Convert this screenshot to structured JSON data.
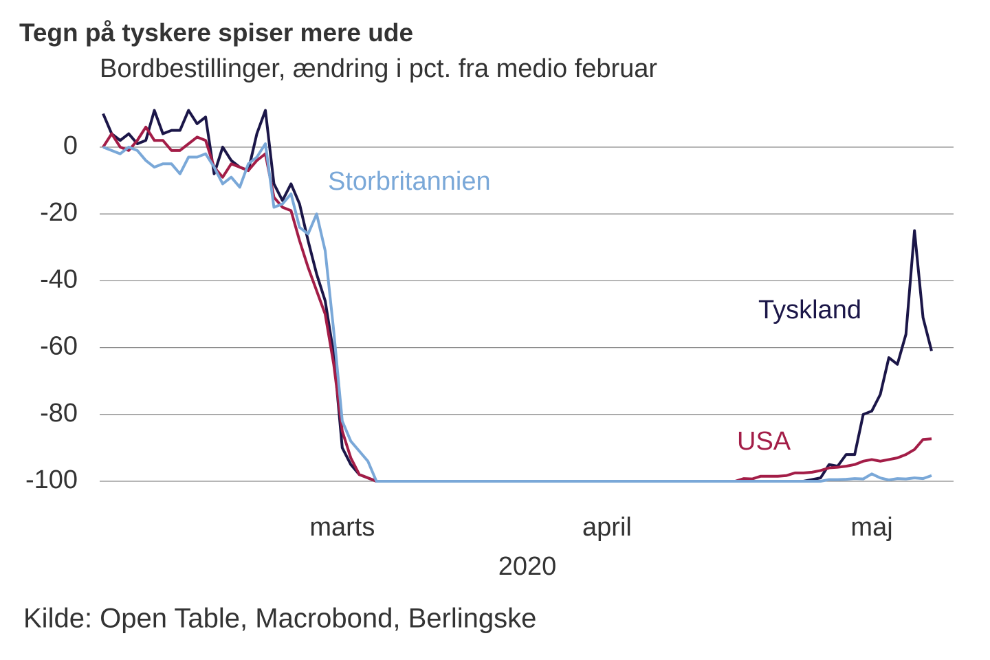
{
  "chart_data": {
    "type": "line",
    "title": "Tegn på tyskere spiser mere ude",
    "subtitle": "Bordbestillinger, ændring i pct. fra medio februar",
    "x_label": "2020",
    "source": "Kilde: Open Table, Macrobond, Berlingske",
    "ylim": [
      -100,
      13
    ],
    "yticks": [
      -100,
      -80,
      -60,
      -40,
      -20,
      0
    ],
    "grid": true,
    "categories": [
      null,
      null,
      null,
      null,
      null,
      null,
      null,
      null,
      null,
      null,
      null,
      null,
      null,
      null,
      null,
      null,
      null,
      null,
      null,
      null,
      null,
      null,
      null,
      null,
      null,
      null,
      null,
      null,
      "marts",
      null,
      null,
      null,
      null,
      null,
      null,
      null,
      null,
      null,
      null,
      null,
      null,
      null,
      null,
      null,
      null,
      null,
      null,
      null,
      null,
      null,
      null,
      null,
      null,
      null,
      null,
      null,
      null,
      null,
      null,
      "april",
      null,
      null,
      null,
      null,
      null,
      null,
      null,
      null,
      null,
      null,
      null,
      null,
      null,
      null,
      null,
      null,
      null,
      null,
      null,
      null,
      null,
      null,
      null,
      null,
      null,
      null,
      null,
      null,
      null,
      null,
      "maj",
      null,
      null,
      null,
      null,
      null,
      null,
      null
    ],
    "series": [
      {
        "name": "Tyskland",
        "color": "#1b1648",
        "values": [
          10,
          4,
          2,
          4,
          1,
          2,
          11,
          4,
          5,
          5,
          11,
          7,
          9,
          -8,
          0,
          -4,
          -6,
          -7,
          4,
          11,
          -11,
          -16,
          -11,
          -17,
          -28,
          -38,
          -46,
          -62,
          -90,
          -95,
          -98,
          -99,
          -100,
          -100,
          -100,
          -100,
          -100,
          -100,
          -100,
          -100,
          -100,
          -100,
          -100,
          -100,
          -100,
          -100,
          -100,
          -100,
          -100,
          -100,
          -100,
          -100,
          -100,
          -100,
          -100,
          -100,
          -100,
          -100,
          -100,
          -100,
          -100,
          -100,
          -100,
          -100,
          -100,
          -100,
          -100,
          -100,
          -100,
          -100,
          -100,
          -100,
          -100,
          -100,
          -100,
          -100,
          -100,
          -100,
          -100,
          -100,
          -100,
          -100,
          -100,
          -99.5,
          -99,
          -95,
          -95.5,
          -92,
          -92,
          -80,
          -79,
          -74,
          -63,
          -65,
          -56,
          -25,
          -51,
          -61
        ]
      },
      {
        "name": "USA",
        "color": "#a31d47",
        "values": [
          0,
          4,
          0,
          -1,
          2,
          6,
          2,
          2,
          -1,
          -1,
          1,
          3,
          2,
          -6,
          -9,
          -5,
          -6,
          -7,
          -4,
          -2,
          -15,
          -18,
          -19,
          -28,
          -36,
          -43,
          -50,
          -65,
          -85,
          -93,
          -98,
          -99,
          -100,
          -100,
          -100,
          -100,
          -100,
          -100,
          -100,
          -100,
          -100,
          -100,
          -100,
          -100,
          -100,
          -100,
          -100,
          -100,
          -100,
          -100,
          -100,
          -100,
          -100,
          -100,
          -100,
          -100,
          -100,
          -100,
          -100,
          -100,
          -100,
          -100,
          -100,
          -100,
          -100,
          -100,
          -100,
          -100,
          -100,
          -100,
          -100,
          -100,
          -100,
          -100,
          -100,
          -99.2,
          -99.3,
          -98.5,
          -98.5,
          -98.5,
          -98.3,
          -97.5,
          -97.5,
          -97.3,
          -96.8,
          -96,
          -95.8,
          -95.5,
          -95,
          -94,
          -93.5,
          -94,
          -93.5,
          -93,
          -92,
          -90.5,
          -87.5,
          -87.3
        ]
      },
      {
        "name": "Storbritannien",
        "color": "#7aa8d8",
        "values": [
          0,
          -1,
          -2,
          0,
          -1,
          -4,
          -6,
          -5,
          -5,
          -8,
          -3,
          -3,
          -2,
          -6,
          -11,
          -9,
          -12,
          -5,
          -3,
          1,
          -18,
          -17,
          -14,
          -24,
          -26,
          -20,
          -31,
          -55,
          -82,
          -88,
          -91,
          -94,
          -100,
          -100,
          -100,
          -100,
          -100,
          -100,
          -100,
          -100,
          -100,
          -100,
          -100,
          -100,
          -100,
          -100,
          -100,
          -100,
          -100,
          -100,
          -100,
          -100,
          -100,
          -100,
          -100,
          -100,
          -100,
          -100,
          -100,
          -100,
          -100,
          -100,
          -100,
          -100,
          -100,
          -100,
          -100,
          -100,
          -100,
          -100,
          -100,
          -100,
          -100,
          -100,
          -100,
          -100,
          -100,
          -100,
          -100,
          -100,
          -100,
          -100,
          -100,
          -100,
          -100,
          -99.5,
          -99.5,
          -99.4,
          -99.2,
          -99.3,
          -97.8,
          -99,
          -99.6,
          -99.2,
          -99.3,
          -99,
          -99.2,
          -98.3
        ]
      }
    ]
  }
}
